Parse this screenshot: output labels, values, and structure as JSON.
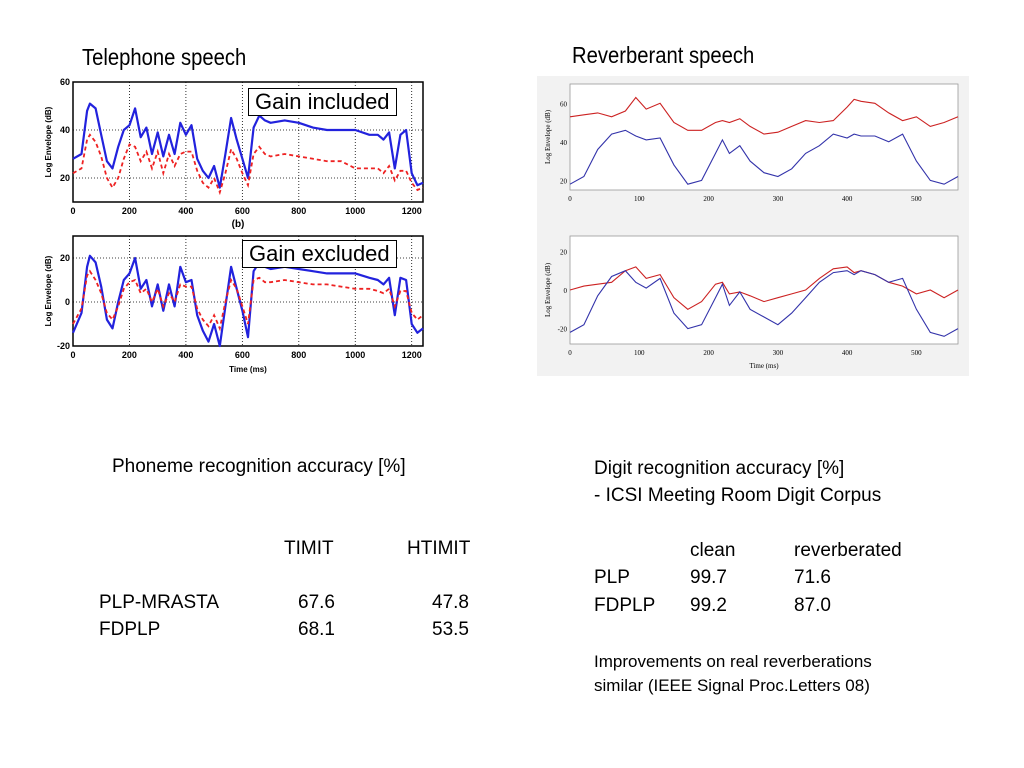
{
  "left": {
    "title": "Telephone speech",
    "top_chart": {
      "ylabel": "Log Envelope (dB)",
      "yticks": [
        "20",
        "40",
        "60"
      ],
      "xticks": [
        "0",
        "200",
        "400",
        "600",
        "800",
        "1000",
        "1200"
      ],
      "caption": "(b)",
      "overlay_label": "Gain included"
    },
    "bottom_chart": {
      "ylabel": "Log Envelope (dB)",
      "xlabel": "Time (ms)",
      "yticks": [
        "-20",
        "0",
        "20"
      ],
      "xticks": [
        "0",
        "200",
        "400",
        "600",
        "800",
        "1000",
        "1200"
      ],
      "overlay_label": "Gain excluded"
    }
  },
  "right": {
    "title": "Reverberant speech",
    "top_chart": {
      "ylabel": "Log Envelope (dB)",
      "yticks": [
        "20",
        "40",
        "60"
      ],
      "xticks": [
        "0",
        "100",
        "200",
        "300",
        "400",
        "500"
      ]
    },
    "bottom_chart": {
      "ylabel": "Log Envelope (dB)",
      "xlabel": "Time (ms)",
      "yticks": [
        "-20",
        "0",
        "20"
      ],
      "xticks": [
        "0",
        "100",
        "200",
        "300",
        "400",
        "500"
      ]
    }
  },
  "phoneme": {
    "caption": "Phoneme recognition accuracy [%]",
    "col1": "TIMIT",
    "col2": "HTIMIT",
    "rows": [
      {
        "name": "PLP-MRASTA",
        "v1": "67.6",
        "v2": "47.8"
      },
      {
        "name": "FDPLP",
        "v1": "68.1",
        "v2": "53.5"
      }
    ]
  },
  "digit": {
    "caption1": "Digit recognition accuracy [%]",
    "caption2": "- ICSI Meeting Room Digit Corpus",
    "col1": "clean",
    "col2": "reverberated",
    "rows": [
      {
        "name": "PLP",
        "v1": "99.7",
        "v2": "71.6"
      },
      {
        "name": "FDPLP",
        "v1": "99.2",
        "v2": "87.0"
      }
    ],
    "note1": "Improvements on real reverberations",
    "note2": "similar  (IEEE Signal Proc.Letters 08)"
  },
  "colors": {
    "blue": "#2222dd",
    "red_dashed": "#ee2222",
    "red_rev": "#cc2222",
    "blue_rev": "#3333aa"
  },
  "chart_data": [
    {
      "type": "line",
      "x": [
        0,
        30,
        50,
        60,
        80,
        100,
        120,
        140,
        160,
        180,
        200,
        220,
        240,
        260,
        280,
        300,
        320,
        340,
        360,
        380,
        400,
        420,
        440,
        460,
        480,
        500,
        520,
        540,
        560,
        580,
        600,
        620,
        640,
        660,
        680,
        700,
        750,
        800,
        850,
        900,
        950,
        1000,
        1050,
        1080,
        1100,
        1120,
        1140,
        1160,
        1180,
        1200,
        1220,
        1240
      ],
      "series": [
        {
          "name": "",
          "values": [
            28,
            30,
            48,
            51,
            49,
            38,
            27,
            24,
            33,
            40,
            42,
            49,
            37,
            41,
            30,
            39,
            29,
            38,
            30,
            43,
            38,
            42,
            28,
            23,
            20,
            25,
            16,
            30,
            45,
            36,
            28,
            20,
            41,
            46,
            44,
            43,
            44,
            43,
            41,
            40,
            40,
            40,
            38,
            38,
            36,
            39,
            24,
            38,
            40,
            22,
            17,
            18
          ]
        },
        {
          "name": "",
          "values": [
            22,
            24,
            36,
            38,
            35,
            29,
            20,
            16,
            20,
            28,
            34,
            33,
            27,
            31,
            24,
            31,
            22,
            30,
            25,
            30,
            31,
            31,
            23,
            18,
            16,
            20,
            14,
            22,
            32,
            28,
            22,
            17,
            30,
            33,
            30,
            29,
            30,
            29,
            28,
            27,
            27,
            24,
            24,
            24,
            22,
            25,
            19,
            23,
            23,
            18,
            15,
            16
          ]
        }
      ],
      "ylim": [
        10,
        60
      ]
    },
    {
      "type": "line",
      "x": [
        0,
        30,
        50,
        60,
        80,
        100,
        120,
        140,
        160,
        180,
        200,
        220,
        240,
        260,
        280,
        300,
        320,
        340,
        360,
        380,
        400,
        420,
        440,
        460,
        480,
        500,
        520,
        540,
        560,
        580,
        600,
        620,
        640,
        660,
        680,
        700,
        750,
        800,
        850,
        900,
        950,
        1000,
        1050,
        1080,
        1100,
        1120,
        1140,
        1160,
        1180,
        1200,
        1220,
        1240
      ],
      "series": [
        {
          "name": "",
          "values": [
            -14,
            -5,
            16,
            21,
            18,
            7,
            -8,
            -12,
            0,
            10,
            13,
            20,
            6,
            10,
            -2,
            8,
            -4,
            8,
            -2,
            16,
            9,
            10,
            -6,
            -13,
            -18,
            -10,
            -20,
            -2,
            16,
            6,
            -4,
            -16,
            14,
            18,
            16,
            15,
            16,
            15,
            14,
            13,
            13,
            13,
            11,
            10,
            8,
            11,
            -6,
            11,
            10,
            -10,
            -14,
            -12
          ]
        },
        {
          "name": "",
          "values": [
            -10,
            -3,
            12,
            14,
            10,
            4,
            -5,
            -8,
            -2,
            6,
            9,
            10,
            4,
            6,
            0,
            6,
            -2,
            4,
            0,
            8,
            7,
            7,
            -3,
            -8,
            -11,
            -6,
            -12,
            0,
            10,
            6,
            -2,
            -10,
            10,
            11,
            9,
            9,
            10,
            9,
            8,
            8,
            7,
            6,
            6,
            5,
            4,
            6,
            -2,
            5,
            5,
            -5,
            -8,
            -6
          ]
        }
      ],
      "ylim": [
        -20,
        30
      ]
    },
    {
      "type": "line",
      "x": [
        0,
        20,
        40,
        60,
        80,
        95,
        110,
        130,
        150,
        170,
        190,
        210,
        220,
        230,
        245,
        260,
        280,
        300,
        320,
        340,
        360,
        380,
        400,
        410,
        420,
        440,
        460,
        480,
        500,
        520,
        540,
        560
      ],
      "series": [
        {
          "name": "",
          "values": [
            53,
            54,
            55,
            53,
            56,
            63,
            57,
            60,
            50,
            46,
            46,
            50,
            51,
            50,
            52,
            48,
            44,
            45,
            48,
            51,
            50,
            51,
            58,
            62,
            61,
            60,
            55,
            51,
            53,
            48,
            50,
            53
          ]
        },
        {
          "name": "",
          "values": [
            18,
            22,
            36,
            44,
            46,
            43,
            41,
            42,
            28,
            18,
            20,
            34,
            41,
            34,
            38,
            30,
            24,
            22,
            26,
            34,
            38,
            44,
            42,
            44,
            43,
            43,
            40,
            44,
            30,
            20,
            18,
            22
          ]
        }
      ],
      "ylim": [
        15,
        70
      ]
    },
    {
      "type": "line",
      "x": [
        0,
        20,
        40,
        60,
        80,
        95,
        110,
        130,
        150,
        170,
        190,
        210,
        220,
        230,
        245,
        260,
        280,
        300,
        320,
        340,
        360,
        380,
        400,
        410,
        420,
        440,
        460,
        480,
        500,
        520,
        540,
        560
      ],
      "series": [
        {
          "name": "",
          "values": [
            0,
            2,
            3,
            4,
            10,
            12,
            6,
            8,
            -4,
            -10,
            -6,
            3,
            4,
            -2,
            -1,
            -3,
            -6,
            -4,
            -2,
            0,
            6,
            11,
            12,
            9,
            10,
            8,
            4,
            2,
            -2,
            0,
            -4,
            0
          ]
        },
        {
          "name": "",
          "values": [
            -22,
            -18,
            -3,
            7,
            10,
            4,
            1,
            6,
            -12,
            -20,
            -18,
            -4,
            3,
            -8,
            -1,
            -10,
            -14,
            -18,
            -12,
            -4,
            4,
            9,
            10,
            8,
            10,
            8,
            4,
            6,
            -10,
            -22,
            -24,
            -20
          ]
        }
      ],
      "ylim": [
        -28,
        28
      ]
    }
  ]
}
